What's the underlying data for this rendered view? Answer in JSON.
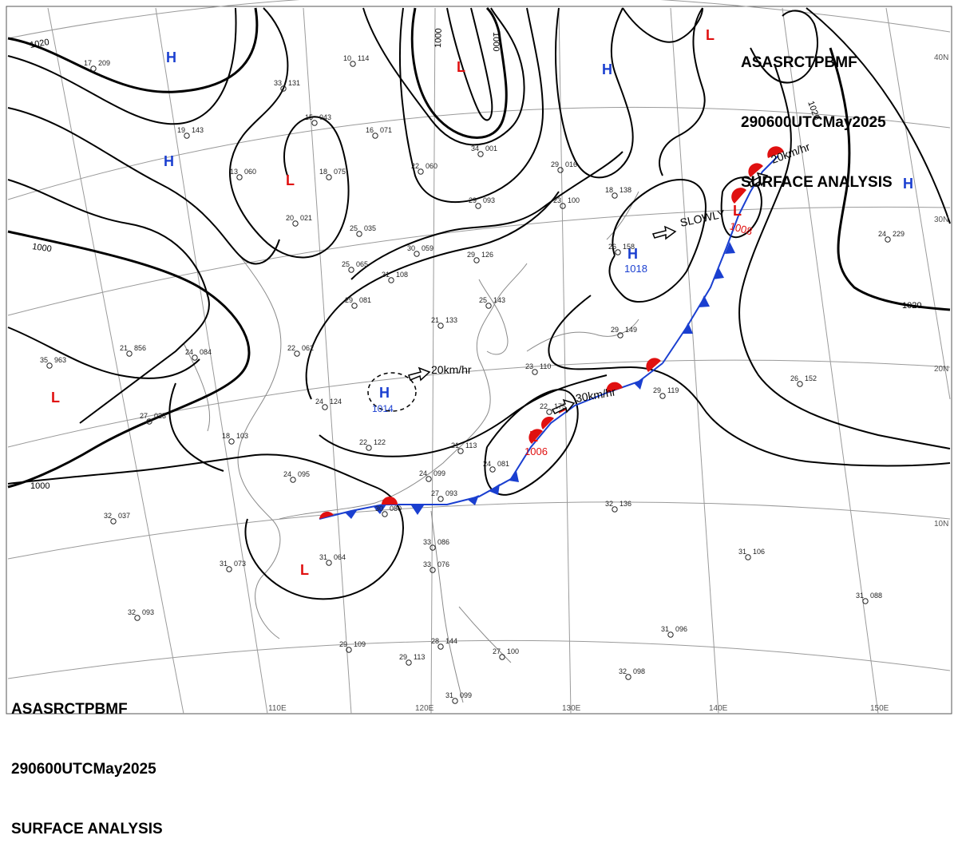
{
  "header_top": {
    "line1": [
      "ASAS",
      "RCTP",
      "BMF"
    ],
    "line2": [
      "290600UTC",
      "May",
      "2025"
    ],
    "line3": "SURFACE ANALYSIS"
  },
  "header_bottom": {
    "line1": [
      "ASAS",
      "RCTP",
      "BMF"
    ],
    "line2": [
      "290600UTC",
      "May",
      "2025"
    ],
    "line3": "SURFACE ANALYSIS"
  },
  "latitude_labels": [
    "40N",
    "30N",
    "20N",
    "10N"
  ],
  "longitude_labels": [
    "110E",
    "120E",
    "130E",
    "140E",
    "150E"
  ],
  "isobar_labels": [
    "1020",
    "1000",
    "1000",
    "1000",
    "1020",
    "1020",
    "1000"
  ],
  "pressure_centers": [
    {
      "type": "H",
      "value": "1014",
      "color": "#1a3fd0"
    },
    {
      "type": "H",
      "value": "1018",
      "color": "#1a3fd0"
    },
    {
      "type": "L",
      "value": "1006",
      "color": "#e01010"
    },
    {
      "type": "L",
      "value": "1008",
      "color": "#e01010"
    },
    {
      "type": "H",
      "value": "",
      "color": "#1a3fd0"
    },
    {
      "type": "H",
      "value": "",
      "color": "#1a3fd0"
    },
    {
      "type": "H",
      "value": "",
      "color": "#1a3fd0"
    },
    {
      "type": "H",
      "value": "",
      "color": "#1a3fd0"
    },
    {
      "type": "L",
      "value": "",
      "color": "#e01010"
    },
    {
      "type": "L",
      "value": "",
      "color": "#e01010"
    },
    {
      "type": "L",
      "value": "",
      "color": "#e01010"
    },
    {
      "type": "L",
      "value": "",
      "color": "#e01010"
    }
  ],
  "motion_labels": [
    "20km/hr",
    "30km/hr",
    "SLOWLY",
    "20km/hr"
  ],
  "stations": [
    {
      "t": "17",
      "p": "209"
    },
    {
      "t": "10",
      "p": "114"
    },
    {
      "t": "33",
      "p": "131"
    },
    {
      "t": "15",
      "p": "043"
    },
    {
      "t": "16",
      "p": "071"
    },
    {
      "t": "34",
      "p": "001"
    },
    {
      "t": "22",
      "p": "060"
    },
    {
      "t": "29",
      "p": "016"
    },
    {
      "t": "19",
      "p": "143"
    },
    {
      "t": "18",
      "p": "075"
    },
    {
      "t": "13",
      "p": "060"
    },
    {
      "t": "20",
      "p": "021"
    },
    {
      "t": "23",
      "p": "100"
    },
    {
      "t": "18",
      "p": "138"
    },
    {
      "t": "29",
      "p": "093"
    },
    {
      "t": "25",
      "p": "035"
    },
    {
      "t": "30",
      "p": "059"
    },
    {
      "t": "29",
      "p": "126"
    },
    {
      "t": "25",
      "p": "065"
    },
    {
      "t": "31",
      "p": "108"
    },
    {
      "t": "29",
      "p": "081"
    },
    {
      "t": "25",
      "p": "143"
    },
    {
      "t": "21",
      "p": "133"
    },
    {
      "t": "22",
      "p": "062"
    },
    {
      "t": "24",
      "p": "084"
    },
    {
      "t": "21",
      "p": "856"
    },
    {
      "t": "35",
      "p": "963"
    },
    {
      "t": "27",
      "p": "023"
    },
    {
      "t": "24",
      "p": "124"
    },
    {
      "t": "18",
      "p": "103"
    },
    {
      "t": "22",
      "p": "122"
    },
    {
      "t": "24",
      "p": "095"
    },
    {
      "t": "32",
      "p": "037"
    },
    {
      "t": "30",
      "p": "080"
    },
    {
      "t": "24",
      "p": "099"
    },
    {
      "t": "27",
      "p": "093"
    },
    {
      "t": "21",
      "p": "113"
    },
    {
      "t": "24",
      "p": "081"
    },
    {
      "t": "31",
      "p": "073"
    },
    {
      "t": "31",
      "p": "064"
    },
    {
      "t": "33",
      "p": "086"
    },
    {
      "t": "33",
      "p": "076"
    },
    {
      "t": "32",
      "p": "136"
    },
    {
      "t": "31",
      "p": "106"
    },
    {
      "t": "31",
      "p": "088"
    },
    {
      "t": "32",
      "p": "093"
    },
    {
      "t": "29",
      "p": "109"
    },
    {
      "t": "29",
      "p": "113"
    },
    {
      "t": "28",
      "p": "144"
    },
    {
      "t": "27",
      "p": "100"
    },
    {
      "t": "31",
      "p": "096"
    },
    {
      "t": "32",
      "p": "098"
    },
    {
      "t": "31",
      "p": "099"
    },
    {
      "t": "24",
      "p": "229"
    },
    {
      "t": "26",
      "p": "152"
    },
    {
      "t": "29",
      "p": "119"
    },
    {
      "t": "29",
      "p": "149"
    },
    {
      "t": "22",
      "p": "175"
    },
    {
      "t": "23",
      "p": "110"
    },
    {
      "t": "26",
      "p": "158"
    }
  ],
  "colors": {
    "front_cold": "#1a3fd0",
    "front_warm": "#e01010",
    "isobar": "#000000",
    "grid": "#9a9a9a",
    "coast": "#8a8a8a"
  }
}
